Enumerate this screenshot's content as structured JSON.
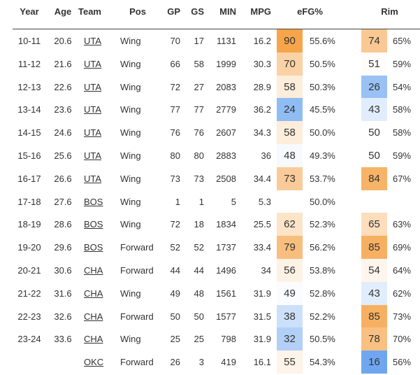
{
  "table": {
    "columns": [
      "Year",
      "Age",
      "Team",
      "Pos",
      "GP",
      "GS",
      "MIN",
      "MPG",
      "eFG%",
      "Rim"
    ],
    "rows": [
      {
        "year": "10-11",
        "age": 20.6,
        "team": "UTA",
        "pos": "Wing",
        "gp": 70,
        "gs": 17,
        "min": 1131,
        "mpg": 16.2,
        "efg_pct": 90,
        "efg": "55.6%",
        "rim_pct": 74,
        "rim": "65%"
      },
      {
        "year": "11-12",
        "age": 21.6,
        "team": "UTA",
        "pos": "Wing",
        "gp": 66,
        "gs": 58,
        "min": 1999,
        "mpg": 30.3,
        "efg_pct": 70,
        "efg": "50.5%",
        "rim_pct": 51,
        "rim": "59%"
      },
      {
        "year": "12-13",
        "age": 22.6,
        "team": "UTA",
        "pos": "Wing",
        "gp": 72,
        "gs": 27,
        "min": 2083,
        "mpg": 28.9,
        "efg_pct": 58,
        "efg": "50.3%",
        "rim_pct": 26,
        "rim": "54%"
      },
      {
        "year": "13-14",
        "age": 23.6,
        "team": "UTA",
        "pos": "Wing",
        "gp": 77,
        "gs": 77,
        "min": 2779,
        "mpg": 36.2,
        "efg_pct": 24,
        "efg": "45.5%",
        "rim_pct": 43,
        "rim": "58%"
      },
      {
        "year": "14-15",
        "age": 24.6,
        "team": "UTA",
        "pos": "Wing",
        "gp": 76,
        "gs": 76,
        "min": 2607,
        "mpg": 34.3,
        "efg_pct": 58,
        "efg": "50.0%",
        "rim_pct": 50,
        "rim": "58%"
      },
      {
        "year": "15-16",
        "age": 25.6,
        "team": "UTA",
        "pos": "Wing",
        "gp": 80,
        "gs": 80,
        "min": 2883,
        "mpg": 36.0,
        "efg_pct": 48,
        "efg": "49.3%",
        "rim_pct": 50,
        "rim": "59%"
      },
      {
        "year": "16-17",
        "age": 26.6,
        "team": "UTA",
        "pos": "Wing",
        "gp": 73,
        "gs": 73,
        "min": 2508,
        "mpg": 34.4,
        "efg_pct": 73,
        "efg": "53.7%",
        "rim_pct": 84,
        "rim": "67%"
      },
      {
        "year": "17-18",
        "age": 27.6,
        "team": "BOS",
        "pos": "Wing",
        "gp": 1,
        "gs": 1,
        "min": 5,
        "mpg": 5.3,
        "efg": "50.0%"
      },
      {
        "year": "18-19",
        "age": 28.6,
        "team": "BOS",
        "pos": "Wing",
        "gp": 72,
        "gs": 18,
        "min": 1834,
        "mpg": 25.5,
        "efg_pct": 62,
        "efg": "52.3%",
        "rim_pct": 65,
        "rim": "63%"
      },
      {
        "year": "19-20",
        "age": 29.6,
        "team": "BOS",
        "pos": "Forward",
        "gp": 52,
        "gs": 52,
        "min": 1737,
        "mpg": 33.4,
        "efg_pct": 79,
        "efg": "56.2%",
        "rim_pct": 85,
        "rim": "69%"
      },
      {
        "year": "20-21",
        "age": 30.6,
        "team": "CHA",
        "pos": "Forward",
        "gp": 44,
        "gs": 44,
        "min": 1496,
        "mpg": 34.0,
        "efg_pct": 56,
        "efg": "53.8%",
        "rim_pct": 54,
        "rim": "64%"
      },
      {
        "year": "21-22",
        "age": 31.6,
        "team": "CHA",
        "pos": "Wing",
        "gp": 49,
        "gs": 48,
        "min": 1561,
        "mpg": 31.9,
        "efg_pct": 49,
        "efg": "52.8%",
        "rim_pct": 43,
        "rim": "62%"
      },
      {
        "year": "22-23",
        "age": 32.6,
        "team": "CHA",
        "pos": "Forward",
        "gp": 50,
        "gs": 50,
        "min": 1577,
        "mpg": 31.5,
        "efg_pct": 38,
        "efg": "52.2%",
        "rim_pct": 85,
        "rim": "73%"
      },
      {
        "year": "23-24",
        "age": 33.6,
        "team": "CHA",
        "pos": "Wing",
        "gp": 25,
        "gs": 25,
        "min": 798,
        "mpg": 31.9,
        "efg_pct": 32,
        "efg": "50.5%",
        "rim_pct": 78,
        "rim": "70%"
      },
      {
        "team": "OKC",
        "pos": "Forward",
        "gp": 26,
        "gs": 3,
        "min": 419,
        "mpg": 16.1,
        "efg_pct": 55,
        "efg": "54.3%",
        "rim_pct": 16,
        "rim": "56%"
      }
    ]
  }
}
